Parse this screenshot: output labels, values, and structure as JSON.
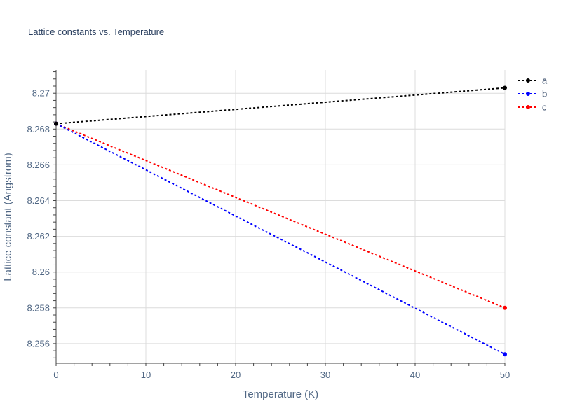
{
  "chart_data": {
    "type": "line",
    "title": "Lattice constants vs. Temperature",
    "xlabel": "Temperature (K)",
    "ylabel": "Lattice constant (Angstrom)",
    "xlim": [
      0,
      50
    ],
    "ylim": [
      8.2549,
      8.2713
    ],
    "x_ticks": [
      0,
      10,
      20,
      30,
      40,
      50
    ],
    "x_tick_labels": [
      "0",
      "10",
      "20",
      "30",
      "40",
      "50"
    ],
    "y_ticks": [
      8.256,
      8.258,
      8.26,
      8.262,
      8.264,
      8.266,
      8.268,
      8.27
    ],
    "y_tick_labels": [
      "8.256",
      "8.258",
      "8.26",
      "8.262",
      "8.264",
      "8.266",
      "8.268",
      "8.27"
    ],
    "grid": true,
    "legend_position": "top-right",
    "series": [
      {
        "name": "a",
        "color": "#000000",
        "x": [
          0,
          50
        ],
        "y": [
          8.2683,
          8.2703
        ]
      },
      {
        "name": "b",
        "color": "#0000ff",
        "x": [
          0,
          50
        ],
        "y": [
          8.2683,
          8.2554
        ]
      },
      {
        "name": "c",
        "color": "#ff0000",
        "x": [
          0,
          50
        ],
        "y": [
          8.2683,
          8.258
        ]
      }
    ]
  }
}
